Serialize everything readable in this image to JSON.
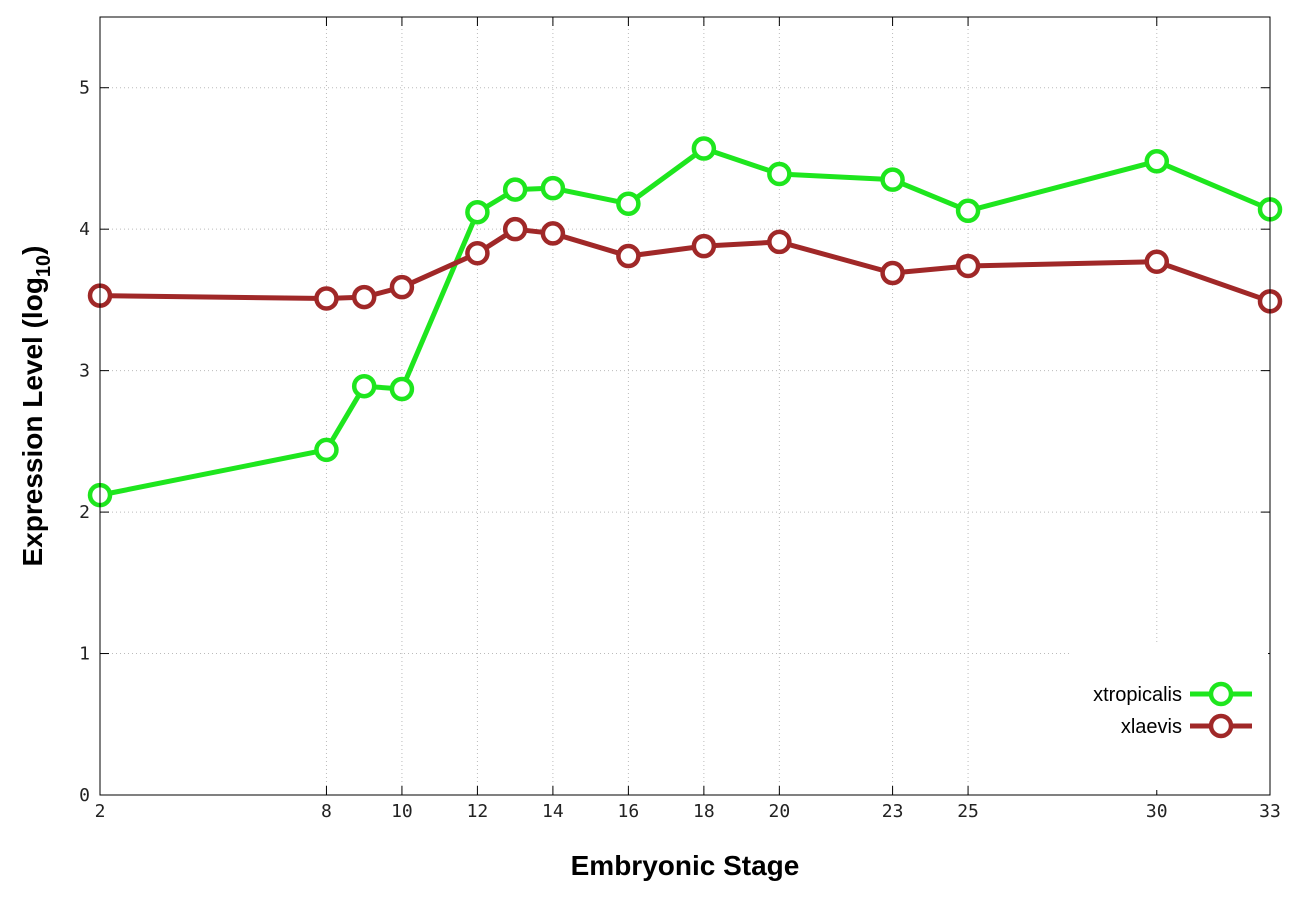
{
  "chart_data": {
    "type": "line",
    "xlabel": "Embryonic Stage",
    "ylabel": [
      "Expression Level (log",
      "10",
      ")"
    ],
    "x": [
      2,
      8,
      9,
      10,
      12,
      13,
      14,
      16,
      18,
      20,
      23,
      25,
      30,
      33
    ],
    "series": [
      {
        "name": "xtropicalis",
        "color": "#1ee61e",
        "values": [
          2.12,
          2.44,
          2.89,
          2.87,
          4.12,
          4.28,
          4.29,
          4.18,
          4.57,
          4.39,
          4.35,
          4.13,
          4.48,
          4.14
        ]
      },
      {
        "name": "xlaevis",
        "color": "#a02828",
        "values": [
          3.53,
          3.51,
          3.52,
          3.59,
          3.83,
          4.0,
          3.97,
          3.81,
          3.88,
          3.91,
          3.69,
          3.74,
          3.77,
          3.49
        ]
      }
    ],
    "xlim": [
      2,
      33
    ],
    "xticks": [
      2,
      8,
      10,
      12,
      14,
      16,
      18,
      20,
      23,
      25,
      30,
      33
    ],
    "ylim": [
      0,
      5.5
    ],
    "yticks": [
      0,
      1,
      2,
      3,
      4,
      5
    ],
    "grid": true,
    "legend": "bottom-right"
  }
}
